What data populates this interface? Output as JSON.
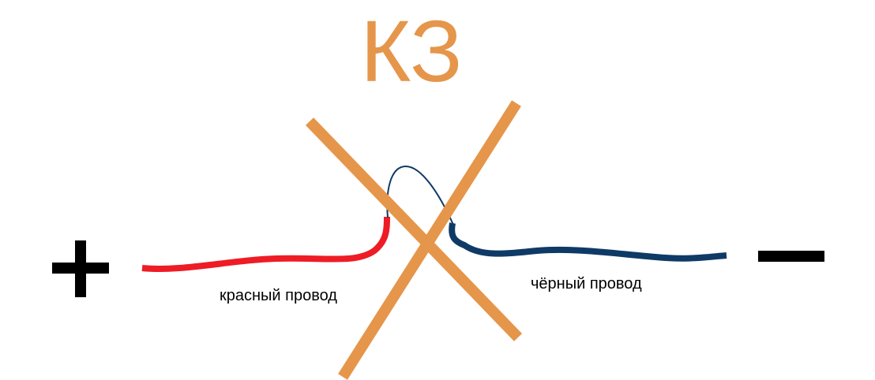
{
  "title": "КЗ",
  "terminals": {
    "positive": "+",
    "negative": "—"
  },
  "labels": {
    "red_wire": "красный провод",
    "black_wire": "чёрный провод"
  },
  "colors": {
    "title": "#E5964A",
    "cross": "#E5964A",
    "red_wire": "#EE1C25",
    "black_wire": "#0F3A66",
    "terminal": "#000000"
  }
}
